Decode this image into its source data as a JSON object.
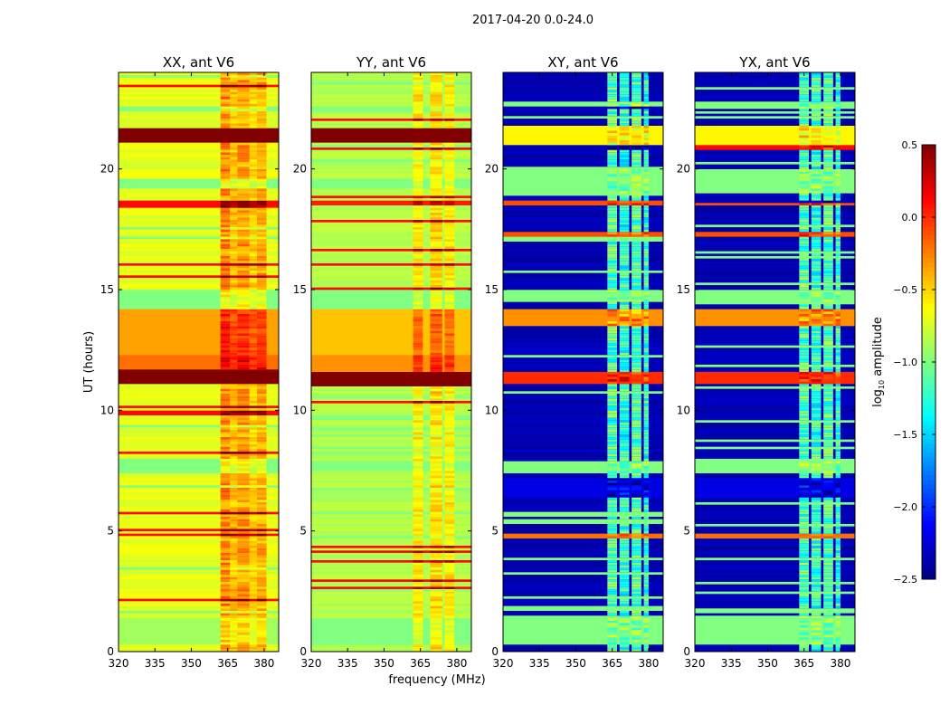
{
  "figure_title": "2017-04-20 0.0-24.0",
  "chart_data": {
    "type": "heatmap",
    "xlabel": "frequency (MHz)",
    "ylabel": "UT (hours)",
    "xlim": [
      320,
      386
    ],
    "ylim": [
      0,
      24
    ],
    "xticks": [
      320,
      335,
      350,
      365,
      380
    ],
    "yticks": [
      0,
      5,
      10,
      15,
      20
    ],
    "colorbar": {
      "label": "log10 amplitude",
      "label_main": "log",
      "label_sub": "10",
      "label_rest": " amplitude",
      "range": [
        -2.5,
        0.5
      ],
      "ticks": [
        0.5,
        0.0,
        -0.5,
        -1.0,
        -1.5,
        -2.0,
        -2.5
      ],
      "tick_labels": [
        "0.5",
        "0.0",
        "−0.5",
        "−1.0",
        "−1.5",
        "−2.0",
        "−2.5"
      ],
      "colormap": "jet"
    },
    "panels": [
      {
        "title": "XX, ant V6",
        "base_value": -0.7,
        "rfi_channels": [
          [
            362,
            366,
            0.45
          ],
          [
            366,
            369,
            0.3
          ],
          [
            369,
            374,
            0.4
          ],
          [
            374,
            377,
            0.25
          ],
          [
            377,
            381,
            0.35
          ]
        ],
        "bands": [
          [
            0.3,
            1.4,
            -0.9
          ],
          [
            7.5,
            7.9,
            -1.0
          ],
          [
            11.1,
            11.7,
            0.5
          ],
          [
            11.7,
            12.3,
            -0.2
          ],
          [
            12.3,
            14.2,
            -0.35
          ],
          [
            14.2,
            15.0,
            -1.0
          ],
          [
            18.5,
            18.7,
            0.1
          ],
          [
            19.2,
            19.6,
            -1.0
          ],
          [
            21.1,
            21.7,
            0.5
          ],
          [
            22.4,
            22.6,
            -1.0
          ]
        ]
      },
      {
        "title": "YY, ant V6",
        "base_value": -0.85,
        "rfi_channels": [
          [
            362,
            366,
            0.3
          ],
          [
            369,
            374,
            0.35
          ],
          [
            375,
            379,
            0.3
          ]
        ],
        "bands": [
          [
            0.3,
            1.4,
            -1.0
          ],
          [
            7.5,
            7.9,
            -1.0
          ],
          [
            11.0,
            11.6,
            0.5
          ],
          [
            11.6,
            12.3,
            -0.3
          ],
          [
            12.3,
            14.2,
            -0.45
          ],
          [
            14.2,
            15.0,
            -1.0
          ],
          [
            18.5,
            18.7,
            0.05
          ],
          [
            19.2,
            19.6,
            -1.0
          ],
          [
            21.1,
            21.7,
            0.5
          ],
          [
            22.4,
            22.6,
            -1.0
          ]
        ]
      },
      {
        "title": "XY, ant V6",
        "base_value": -2.35,
        "rfi_channels": [
          [
            363,
            367,
            1.2
          ],
          [
            368,
            372,
            1.1
          ],
          [
            373,
            377,
            1.2
          ],
          [
            378,
            380,
            1.1
          ]
        ],
        "bands": [
          [
            0.3,
            1.5,
            -1.0
          ],
          [
            4.7,
            4.9,
            -0.2
          ],
          [
            6.4,
            7.2,
            -2.2
          ],
          [
            7.4,
            7.9,
            -1.0
          ],
          [
            11.1,
            11.6,
            0.0
          ],
          [
            13.5,
            14.2,
            -0.3
          ],
          [
            14.5,
            15.0,
            -1.0
          ],
          [
            17.2,
            17.4,
            -0.1
          ],
          [
            18.5,
            18.7,
            -0.1
          ],
          [
            19.0,
            20.0,
            -1.0
          ],
          [
            20.8,
            21.0,
            0.1
          ],
          [
            21.0,
            21.8,
            -0.6
          ],
          [
            22.5,
            22.8,
            -1.0
          ]
        ]
      },
      {
        "title": "YX, ant V6",
        "base_value": -2.35,
        "rfi_channels": [
          [
            363,
            367,
            1.2
          ],
          [
            368,
            372,
            1.1
          ],
          [
            373,
            377,
            1.2
          ],
          [
            378,
            380,
            1.1
          ]
        ],
        "bands": [
          [
            0.3,
            1.5,
            -1.0
          ],
          [
            4.7,
            4.9,
            -0.2
          ],
          [
            6.4,
            7.2,
            -2.2
          ],
          [
            7.4,
            7.9,
            -1.0
          ],
          [
            11.1,
            11.6,
            0.0
          ],
          [
            13.5,
            14.2,
            -0.3
          ],
          [
            14.5,
            15.0,
            -1.0
          ],
          [
            17.2,
            17.4,
            -0.1
          ],
          [
            18.5,
            18.7,
            -0.1
          ],
          [
            19.0,
            20.0,
            -1.0
          ],
          [
            20.8,
            21.0,
            0.1
          ],
          [
            21.0,
            21.8,
            -0.6
          ],
          [
            22.5,
            22.8,
            -1.0
          ]
        ]
      }
    ]
  }
}
